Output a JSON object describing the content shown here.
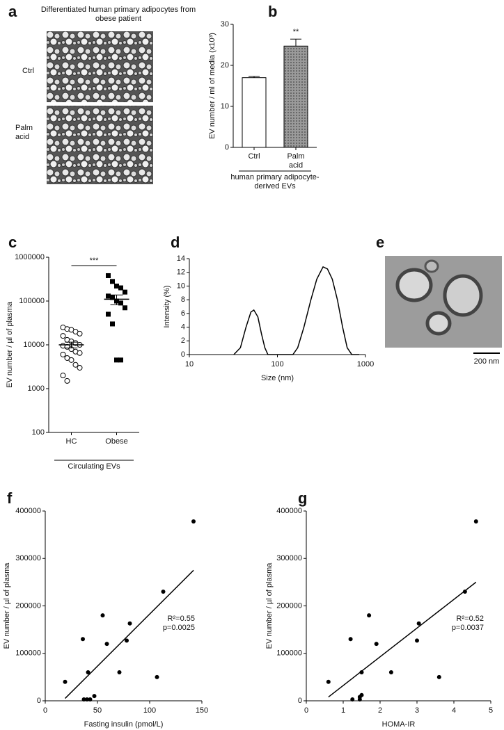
{
  "images": [
    {
      "panel": "a",
      "title": "Differentiated human primary adipocytes from obese patient",
      "labels": [
        "Ctrl",
        "Palm acid"
      ]
    },
    {
      "panel": "e",
      "scale_bar": "200 nm"
    }
  ],
  "chart_data": [
    {
      "type": "bar",
      "panel": "b",
      "ylabel": "EV number / ml of media (x10³)",
      "categories": [
        "Ctrl",
        "Palm acid"
      ],
      "values": [
        17,
        24.7
      ],
      "errors": [
        0.3,
        1.7
      ],
      "colors": [
        "#ffffff",
        "#8a8a8a"
      ],
      "ylim": [
        0,
        30
      ],
      "yticks": [
        0,
        10,
        20,
        30
      ],
      "significance": "**",
      "group_label": "human primary adipocyte-derived EVs"
    },
    {
      "type": "strip",
      "panel": "c",
      "ylabel": "EV number / µl of plasma",
      "log_y": true,
      "categories": [
        "HC",
        "Obese"
      ],
      "values": [
        [
          25000,
          23000,
          22000,
          20000,
          18000,
          16000,
          13000,
          12000,
          11000,
          10000,
          9500,
          9000,
          8000,
          7000,
          6500,
          6000,
          5000,
          4500,
          3500,
          3000,
          2000,
          1500
        ],
        [
          380000,
          280000,
          220000,
          200000,
          160000,
          130000,
          120000,
          100000,
          90000,
          70000,
          50000,
          30000,
          4500,
          4500
        ]
      ],
      "markers": [
        "open-circle",
        "square"
      ],
      "means": [
        10000,
        110000
      ],
      "errors": [
        1500,
        28000
      ],
      "ylim": [
        100,
        1000000
      ],
      "yticks": [
        100,
        1000,
        10000,
        100000,
        1000000
      ],
      "significance": "***",
      "group_label": "Circulating EVs"
    },
    {
      "type": "line",
      "panel": "d",
      "ylabel": "Intensity (%)",
      "xlabel": "Size (nm)",
      "log_x": true,
      "x": [
        32,
        38,
        44,
        50,
        54,
        60,
        66,
        72,
        78,
        100,
        150,
        170,
        200,
        240,
        280,
        330,
        370,
        420,
        480,
        550,
        620,
        700,
        850
      ],
      "y": [
        0,
        1,
        4,
        6.2,
        6.5,
        5.5,
        3,
        1,
        0,
        0,
        0,
        1,
        4,
        8,
        11,
        12.8,
        12.5,
        11,
        8,
        4,
        1,
        0,
        0
      ],
      "xlim": [
        10,
        1000
      ],
      "xticks": [
        10,
        100,
        1000
      ],
      "ylim": [
        0,
        14
      ],
      "yticks": [
        0,
        2,
        4,
        6,
        8,
        10,
        12,
        14
      ]
    },
    {
      "type": "scatter",
      "panel": "f",
      "ylabel": "EV number / µl of plasma",
      "xlabel": "Fasting insulin  (pmol/L)",
      "x": [
        19,
        37,
        40,
        41,
        43,
        47,
        36,
        55,
        59,
        71,
        78,
        81,
        107,
        113,
        142
      ],
      "y": [
        40000,
        3000,
        3000,
        60000,
        3000,
        10000,
        130000,
        180000,
        120000,
        60000,
        127000,
        163000,
        50000,
        230000,
        378000
      ],
      "fit": {
        "x": [
          19,
          142
        ],
        "y": [
          5000,
          275000
        ]
      },
      "annotations": [
        "R²=0.55",
        "p=0.0025"
      ],
      "xlim": [
        0,
        150
      ],
      "xticks": [
        0,
        50,
        100,
        150
      ],
      "ylim": [
        0,
        400000
      ],
      "yticks": [
        0,
        100000,
        200000,
        300000,
        400000
      ]
    },
    {
      "type": "scatter",
      "panel": "g",
      "ylabel": "EV number / µl of plasma",
      "xlabel": "HOMA-IR",
      "x": [
        0.6,
        1.2,
        1.25,
        1.45,
        1.45,
        1.5,
        1.5,
        1.7,
        1.9,
        2.3,
        3.0,
        3.05,
        3.6,
        4.3,
        4.6
      ],
      "y": [
        40000,
        130000,
        3000,
        8000,
        3000,
        60000,
        12000,
        180000,
        120000,
        60000,
        127000,
        163000,
        50000,
        230000,
        378000
      ],
      "fit": {
        "x": [
          0.6,
          4.6
        ],
        "y": [
          8000,
          250000
        ]
      },
      "annotations": [
        "R²=0.52",
        "p=0.0037"
      ],
      "xlim": [
        0,
        5
      ],
      "xticks": [
        0,
        1,
        2,
        3,
        4,
        5
      ],
      "ylim": [
        0,
        400000
      ],
      "yticks": [
        0,
        100000,
        200000,
        300000,
        400000
      ]
    }
  ]
}
